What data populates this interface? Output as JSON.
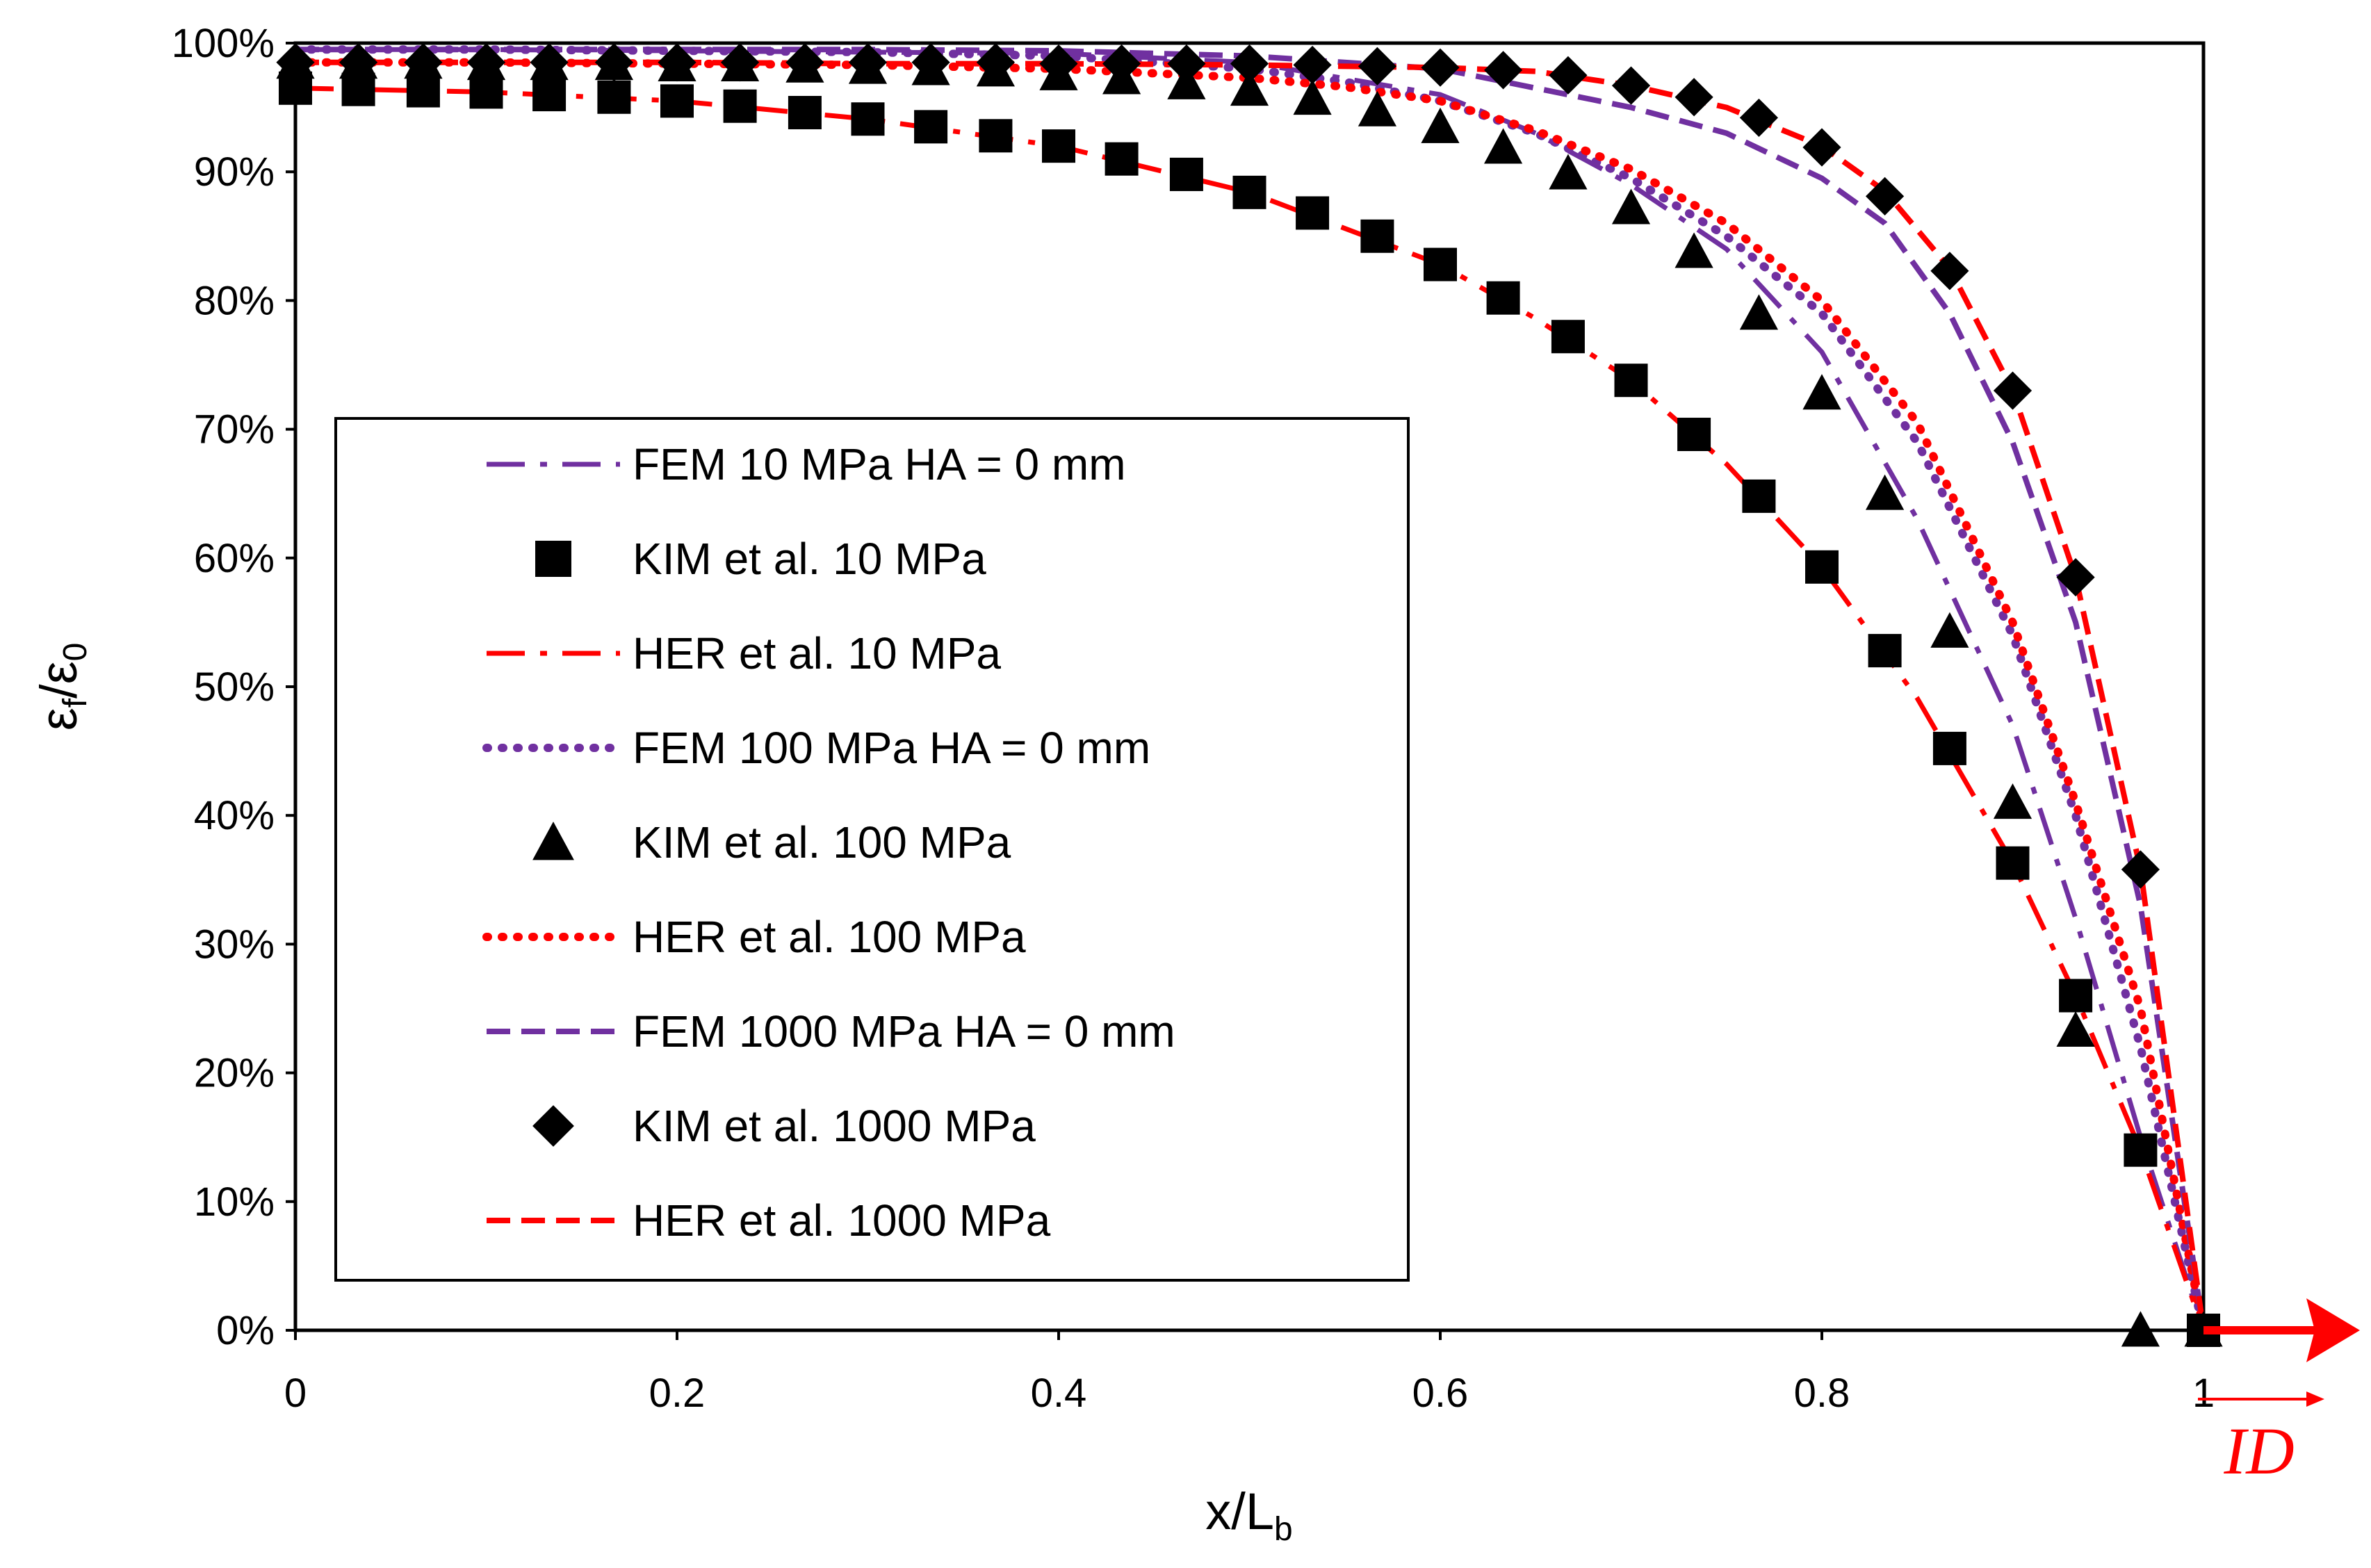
{
  "chart_data": {
    "type": "line",
    "xlabel": "x/L",
    "xlabel_sub": "b",
    "ylabel_parts": {
      "eps1": "ε",
      "sub1": "f",
      "slash": "/",
      "eps2": "ε",
      "sub2": "0"
    },
    "xlim": [
      0,
      1
    ],
    "ylim": [
      0,
      100
    ],
    "x_ticks": [
      "0",
      "0.2",
      "0.4",
      "0.6",
      "0.8",
      "1"
    ],
    "x_tick_values": [
      0,
      0.2,
      0.4,
      0.6,
      0.8,
      1
    ],
    "y_ticks": [
      "0%",
      "10%",
      "20%",
      "30%",
      "40%",
      "50%",
      "60%",
      "70%",
      "80%",
      "90%",
      "100%"
    ],
    "y_tick_values": [
      0,
      10,
      20,
      30,
      40,
      50,
      60,
      70,
      80,
      90,
      100
    ],
    "arrow_label": "ID",
    "colors": {
      "purple": "#7030a0",
      "red": "#ff0000",
      "black": "#000000"
    },
    "series": [
      {
        "name": "FEM 10 MPa HA = 0 mm",
        "kind": "line",
        "color": "#7030a0",
        "dash": "dashdot",
        "x": [
          0,
          0.1,
          0.2,
          0.3,
          0.4,
          0.5,
          0.6,
          0.65,
          0.7,
          0.75,
          0.8,
          0.85,
          0.9,
          0.933,
          0.967,
          1.0
        ],
        "y": [
          99.5,
          99.5,
          99.4,
          99.3,
          99.2,
          98.5,
          96.0,
          93.0,
          89.0,
          84.0,
          76.0,
          63.0,
          47.0,
          32.0,
          15.0,
          0
        ]
      },
      {
        "name": "KIM et al. 10 MPa",
        "kind": "marker",
        "marker": "square",
        "color": "#000000",
        "x": [
          0,
          0.033,
          0.067,
          0.1,
          0.133,
          0.167,
          0.2,
          0.233,
          0.267,
          0.3,
          0.333,
          0.367,
          0.4,
          0.433,
          0.467,
          0.5,
          0.533,
          0.567,
          0.6,
          0.633,
          0.667,
          0.7,
          0.733,
          0.767,
          0.8,
          0.833,
          0.867,
          0.9,
          0.933,
          0.967,
          1.0
        ],
        "y": [
          96.5,
          96.4,
          96.3,
          96.2,
          96.0,
          95.8,
          95.5,
          95.1,
          94.6,
          94.1,
          93.5,
          92.8,
          92.0,
          91.0,
          89.8,
          88.4,
          86.8,
          85.0,
          82.8,
          80.2,
          77.2,
          73.8,
          69.6,
          64.8,
          59.3,
          52.8,
          45.2,
          36.3,
          26.0,
          14.0,
          0
        ]
      },
      {
        "name": "HER et al. 10 MPa",
        "kind": "line",
        "color": "#ff0000",
        "dash": "dashdot",
        "x": [
          0,
          0.1,
          0.2,
          0.3,
          0.4,
          0.5,
          0.6,
          0.65,
          0.7,
          0.75,
          0.8,
          0.85,
          0.9,
          0.933,
          0.967,
          1.0
        ],
        "y": [
          96.5,
          96.2,
          95.5,
          94.1,
          92.0,
          88.4,
          82.8,
          78.6,
          73.8,
          67.3,
          59.3,
          49.1,
          36.3,
          26.0,
          14.0,
          0
        ]
      },
      {
        "name": "FEM 100 MPa HA = 0 mm",
        "kind": "line",
        "color": "#7030a0",
        "dash": "dot",
        "x": [
          0,
          0.1,
          0.2,
          0.3,
          0.4,
          0.5,
          0.55,
          0.6,
          0.65,
          0.7,
          0.75,
          0.8,
          0.85,
          0.9,
          0.933,
          0.967,
          1.0
        ],
        "y": [
          99.5,
          99.5,
          99.4,
          99.3,
          99.0,
          98.0,
          97.0,
          95.5,
          93.0,
          89.5,
          85.0,
          79.0,
          69.0,
          54.0,
          40.0,
          22.0,
          0
        ]
      },
      {
        "name": "KIM et al. 100 MPa",
        "kind": "marker",
        "marker": "triangle",
        "color": "#000000",
        "x": [
          0,
          0.033,
          0.067,
          0.1,
          0.133,
          0.167,
          0.2,
          0.233,
          0.267,
          0.3,
          0.333,
          0.367,
          0.4,
          0.433,
          0.467,
          0.5,
          0.533,
          0.567,
          0.6,
          0.633,
          0.667,
          0.7,
          0.733,
          0.767,
          0.8,
          0.833,
          0.867,
          0.9,
          0.933,
          0.967,
          1.0
        ],
        "y": [
          98.5,
          98.5,
          98.5,
          98.4,
          98.4,
          98.4,
          98.3,
          98.3,
          98.2,
          98.1,
          98.0,
          97.9,
          97.6,
          97.3,
          96.9,
          96.4,
          95.7,
          94.8,
          93.5,
          91.9,
          89.9,
          87.2,
          83.8,
          79.0,
          72.8,
          65.0,
          54.3,
          41.0,
          23.3,
          0,
          0
        ]
      },
      {
        "name": "HER et al. 100 MPa",
        "kind": "line",
        "color": "#ff0000",
        "dash": "dot",
        "x": [
          0,
          0.1,
          0.2,
          0.3,
          0.4,
          0.5,
          0.55,
          0.6,
          0.65,
          0.7,
          0.75,
          0.8,
          0.85,
          0.9,
          0.933,
          0.967,
          1.0
        ],
        "y": [
          98.5,
          98.5,
          98.4,
          98.3,
          98.0,
          97.3,
          96.6,
          95.5,
          93.2,
          90.2,
          86.0,
          80.0,
          70.5,
          55.0,
          41.0,
          25.0,
          0
        ]
      },
      {
        "name": "FEM 1000 MPa HA = 0 mm",
        "kind": "line",
        "color": "#7030a0",
        "dash": "dash",
        "x": [
          0,
          0.1,
          0.2,
          0.3,
          0.4,
          0.5,
          0.6,
          0.65,
          0.7,
          0.75,
          0.8,
          0.833,
          0.867,
          0.9,
          0.933,
          0.967,
          1.0
        ],
        "y": [
          99.5,
          99.5,
          99.5,
          99.5,
          99.4,
          99.0,
          98.0,
          96.5,
          95.0,
          93.0,
          89.5,
          86.0,
          79.0,
          69.0,
          55.0,
          33.0,
          0
        ]
      },
      {
        "name": "KIM et al. 1000 MPa",
        "kind": "marker",
        "marker": "diamond",
        "color": "#000000",
        "x": [
          0,
          0.033,
          0.067,
          0.1,
          0.133,
          0.167,
          0.2,
          0.233,
          0.267,
          0.3,
          0.333,
          0.367,
          0.4,
          0.433,
          0.467,
          0.5,
          0.533,
          0.567,
          0.6,
          0.633,
          0.667,
          0.7,
          0.733,
          0.767,
          0.8,
          0.833,
          0.867,
          0.9,
          0.933,
          0.967
        ],
        "y": [
          98.5,
          98.5,
          98.5,
          98.5,
          98.5,
          98.5,
          98.5,
          98.5,
          98.5,
          98.5,
          98.5,
          98.5,
          98.4,
          98.4,
          98.4,
          98.4,
          98.3,
          98.2,
          98.1,
          97.9,
          97.5,
          96.7,
          95.8,
          94.2,
          91.9,
          88.1,
          82.3,
          73.0,
          58.5,
          35.8
        ]
      },
      {
        "name": "HER et al. 1000 MPa",
        "kind": "line",
        "color": "#ff0000",
        "dash": "dash",
        "x": [
          0,
          0.1,
          0.2,
          0.3,
          0.4,
          0.5,
          0.6,
          0.65,
          0.7,
          0.75,
          0.8,
          0.833,
          0.867,
          0.9,
          0.933,
          0.967,
          1.0
        ],
        "y": [
          98.5,
          98.5,
          98.5,
          98.4,
          98.4,
          98.3,
          98.1,
          97.8,
          96.7,
          95.0,
          92.0,
          88.5,
          82.5,
          73.0,
          58.5,
          35.8,
          0
        ]
      }
    ]
  }
}
